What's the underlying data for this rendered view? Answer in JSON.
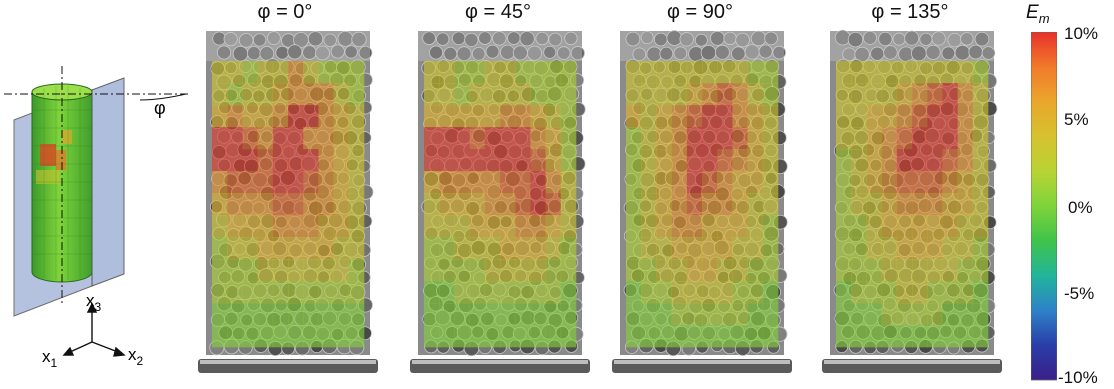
{
  "panels": [
    {
      "label": "φ = 0°",
      "grid": [
        [
          4,
          4,
          3,
          4,
          4,
          6,
          4,
          3,
          3,
          3
        ],
        [
          4,
          3,
          4,
          4,
          5,
          6,
          6,
          6,
          4,
          3
        ],
        [
          5,
          6,
          5,
          5,
          6,
          8,
          8,
          6,
          5,
          4
        ],
        [
          8,
          8,
          7,
          6,
          8,
          8,
          6,
          6,
          5,
          4
        ],
        [
          8,
          8,
          8,
          7,
          8,
          8,
          8,
          6,
          5,
          4
        ],
        [
          6,
          7,
          7,
          7,
          8,
          8,
          7,
          6,
          5,
          4
        ],
        [
          5,
          6,
          6,
          6,
          7,
          7,
          6,
          6,
          5,
          4
        ],
        [
          4,
          5,
          5,
          5,
          6,
          6,
          6,
          5,
          5,
          4
        ],
        [
          3,
          4,
          4,
          5,
          5,
          5,
          5,
          5,
          4,
          4
        ],
        [
          3,
          3,
          3,
          4,
          4,
          4,
          4,
          4,
          4,
          3
        ],
        [
          3,
          3,
          3,
          3,
          3,
          3,
          3,
          3,
          3,
          3
        ],
        [
          2,
          2,
          2,
          2,
          2,
          2,
          2,
          2,
          2,
          2
        ],
        [
          2,
          2,
          2,
          2,
          2,
          2,
          2,
          2,
          2,
          2
        ]
      ]
    },
    {
      "label": "φ = 45°",
      "grid": [
        [
          4,
          4,
          3,
          3,
          4,
          4,
          3,
          3,
          3,
          3
        ],
        [
          4,
          4,
          3,
          4,
          4,
          4,
          4,
          3,
          3,
          3
        ],
        [
          5,
          5,
          5,
          5,
          5,
          6,
          6,
          5,
          4,
          3
        ],
        [
          8,
          8,
          8,
          7,
          8,
          8,
          8,
          6,
          5,
          3
        ],
        [
          8,
          8,
          8,
          8,
          8,
          8,
          8,
          7,
          5,
          3
        ],
        [
          5,
          6,
          6,
          6,
          6,
          7,
          7,
          8,
          6,
          4
        ],
        [
          4,
          5,
          5,
          5,
          6,
          6,
          7,
          8,
          7,
          4
        ],
        [
          4,
          4,
          4,
          5,
          5,
          5,
          6,
          6,
          5,
          4
        ],
        [
          3,
          3,
          4,
          4,
          4,
          5,
          5,
          5,
          4,
          3
        ],
        [
          3,
          3,
          3,
          3,
          4,
          4,
          4,
          4,
          3,
          3
        ],
        [
          2,
          2,
          3,
          3,
          3,
          3,
          3,
          3,
          3,
          2
        ],
        [
          2,
          2,
          2,
          2,
          2,
          2,
          2,
          2,
          2,
          2
        ],
        [
          2,
          2,
          2,
          2,
          2,
          2,
          2,
          2,
          2,
          2
        ]
      ]
    },
    {
      "label": "φ = 90°",
      "grid": [
        [
          4,
          4,
          4,
          4,
          4,
          4,
          4,
          4,
          3,
          3
        ],
        [
          4,
          4,
          4,
          4,
          5,
          6,
          7,
          6,
          4,
          3
        ],
        [
          5,
          4,
          5,
          6,
          7,
          8,
          8,
          6,
          5,
          4
        ],
        [
          3,
          4,
          5,
          6,
          8,
          8,
          8,
          7,
          5,
          4
        ],
        [
          3,
          4,
          5,
          6,
          8,
          8,
          7,
          6,
          5,
          4
        ],
        [
          3,
          4,
          5,
          6,
          8,
          7,
          6,
          5,
          5,
          4
        ],
        [
          3,
          4,
          5,
          6,
          7,
          6,
          6,
          5,
          4,
          4
        ],
        [
          3,
          4,
          5,
          6,
          6,
          5,
          5,
          5,
          4,
          3
        ],
        [
          3,
          4,
          4,
          5,
          5,
          5,
          5,
          4,
          4,
          3
        ],
        [
          3,
          3,
          4,
          4,
          5,
          5,
          4,
          4,
          3,
          3
        ],
        [
          2,
          3,
          3,
          4,
          4,
          4,
          4,
          3,
          3,
          2
        ],
        [
          2,
          2,
          2,
          3,
          3,
          3,
          3,
          3,
          2,
          2
        ],
        [
          2,
          2,
          2,
          2,
          2,
          2,
          2,
          2,
          2,
          2
        ]
      ]
    },
    {
      "label": "φ = 135°",
      "grid": [
        [
          4,
          4,
          4,
          4,
          4,
          4,
          4,
          4,
          4,
          3
        ],
        [
          4,
          4,
          4,
          4,
          5,
          6,
          7,
          8,
          6,
          4
        ],
        [
          4,
          4,
          5,
          5,
          6,
          7,
          8,
          8,
          6,
          4
        ],
        [
          4,
          4,
          5,
          6,
          7,
          8,
          8,
          8,
          6,
          4
        ],
        [
          3,
          4,
          5,
          6,
          8,
          8,
          8,
          7,
          6,
          4
        ],
        [
          3,
          4,
          5,
          6,
          7,
          7,
          7,
          6,
          5,
          4
        ],
        [
          3,
          4,
          4,
          5,
          6,
          6,
          6,
          5,
          5,
          4
        ],
        [
          3,
          3,
          4,
          5,
          5,
          5,
          5,
          5,
          4,
          4
        ],
        [
          3,
          3,
          4,
          4,
          5,
          5,
          5,
          4,
          4,
          3
        ],
        [
          3,
          3,
          3,
          4,
          4,
          4,
          4,
          4,
          3,
          3
        ],
        [
          2,
          3,
          3,
          3,
          4,
          4,
          3,
          3,
          3,
          2
        ],
        [
          2,
          2,
          2,
          3,
          3,
          3,
          3,
          2,
          2,
          2
        ],
        [
          2,
          2,
          2,
          2,
          2,
          2,
          2,
          2,
          2,
          2
        ]
      ]
    }
  ],
  "colorbar": {
    "title": "E",
    "title_sub": "m",
    "ticks": [
      "10%",
      "5%",
      "0%",
      "-5%",
      "-10%"
    ],
    "colors": [
      "#e8312b",
      "#f07a2a",
      "#eaa62c",
      "#d6c22f",
      "#b9d334",
      "#7ed43a",
      "#3fc34a",
      "#22b59a",
      "#2d82c9",
      "#2a3ea8",
      "#3a1f8a"
    ]
  },
  "cell_palette": [
    "#3fc34a",
    "#5fcb42",
    "#86d23c",
    "#aed133",
    "#cfc82e",
    "#e2b42c",
    "#e8952b",
    "#e5672a",
    "#e13a2b"
  ],
  "diagram": {
    "phi": "φ",
    "axis_x1": "x",
    "axis_x1_sub": "1",
    "axis_x2": "x",
    "axis_x2_sub": "2",
    "axis_x3": "x",
    "axis_x3_sub": "3"
  }
}
